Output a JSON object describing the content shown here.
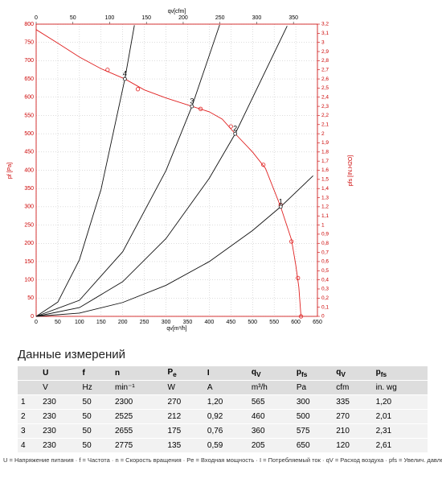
{
  "chart_data": {
    "type": "line",
    "xlabel": "qv[m³/h]",
    "x2label": "qv[cfm]",
    "ylabel": "pf [Pa]",
    "y2label": "pfs [IN.H2O]",
    "xlim": [
      0,
      650
    ],
    "xticks": [
      0,
      50,
      100,
      150,
      200,
      250,
      300,
      350,
      400,
      450,
      500,
      550,
      600,
      650
    ],
    "x2lim": [
      0,
      382.6
    ],
    "x2ticks": [
      0,
      50,
      100,
      150,
      200,
      250,
      300,
      350
    ],
    "ylim": [
      0,
      800
    ],
    "yticks": [
      0,
      50,
      100,
      150,
      200,
      250,
      300,
      350,
      400,
      450,
      500,
      550,
      600,
      650,
      700,
      750,
      800
    ],
    "y2lim": [
      0,
      3.2
    ],
    "y2ticks": [
      0,
      {
        "value": 0.1,
        "label": "0,1"
      },
      {
        "value": 0.2,
        "label": "0,2"
      },
      {
        "value": 0.3,
        "label": "0,3"
      },
      {
        "value": 0.4,
        "label": "0,4"
      },
      {
        "value": 0.5,
        "label": "0,5"
      },
      {
        "value": 0.6,
        "label": "0,6"
      },
      {
        "value": 0.7,
        "label": "0,7"
      },
      {
        "value": 0.8,
        "label": "0,8"
      },
      {
        "value": 0.9,
        "label": "0,9"
      },
      1,
      {
        "value": 1.1,
        "label": "1,1"
      },
      {
        "value": 1.2,
        "label": "1,2"
      },
      {
        "value": 1.3,
        "label": "1,3"
      },
      {
        "value": 1.4,
        "label": "1,4"
      },
      {
        "value": 1.5,
        "label": "1,5"
      },
      {
        "value": 1.6,
        "label": "1,6"
      },
      {
        "value": 1.7,
        "label": "1,7"
      },
      {
        "value": 1.8,
        "label": "1,8"
      },
      {
        "value": 1.9,
        "label": "1,9"
      },
      2,
      {
        "value": 2.1,
        "label": "2,1"
      },
      {
        "value": 2.2,
        "label": "2,2"
      },
      {
        "value": 2.3,
        "label": "2,3"
      },
      {
        "value": 2.4,
        "label": "2,4"
      },
      {
        "value": 2.5,
        "label": "2,5"
      },
      {
        "value": 2.6,
        "label": "2,6"
      },
      {
        "value": 2.7,
        "label": "2,7"
      },
      {
        "value": 2.8,
        "label": "2,8"
      },
      {
        "value": 2.9,
        "label": "2,9"
      },
      3,
      {
        "value": 3.1,
        "label": "3,1"
      },
      {
        "value": 3.2,
        "label": "3,2"
      }
    ],
    "grid": true,
    "series": [
      {
        "type": "line",
        "color": "#e02020",
        "x": [
          0,
          50,
          100,
          150,
          205,
          250,
          300,
          360,
          400,
          430,
          460,
          500,
          530,
          565,
          590,
          600,
          607,
          612
        ],
        "values": [
          785,
          748,
          710,
          678,
          650,
          620,
          598,
          575,
          560,
          540,
          500,
          450,
          405,
          300,
          210,
          140,
          80,
          0
        ]
      },
      {
        "type": "scatter",
        "color": "#e02020",
        "x": [
          165,
          235,
          380,
          450,
          525,
          565,
          590,
          605,
          612
        ],
        "values": [
          675,
          622,
          568,
          520,
          415,
          305,
          205,
          105,
          0
        ]
      },
      {
        "type": "line",
        "color": "#111111",
        "x": [
          0,
          50,
          100,
          150,
          205,
          227
        ],
        "values": [
          0,
          39,
          155,
          348,
          650,
          797
        ]
      },
      {
        "type": "line",
        "color": "#111111",
        "x": [
          0,
          100,
          200,
          300,
          360,
          424
        ],
        "values": [
          0,
          44,
          177,
          399,
          575,
          798
        ]
      },
      {
        "type": "line",
        "color": "#111111",
        "x": [
          0,
          100,
          200,
          300,
          400,
          460,
          580
        ],
        "values": [
          0,
          24,
          95,
          213,
          378,
          500,
          795
        ]
      },
      {
        "type": "line",
        "color": "#111111",
        "x": [
          0,
          100,
          200,
          300,
          400,
          500,
          565,
          640
        ],
        "values": [
          0,
          9,
          38,
          85,
          150,
          235,
          300,
          385
        ]
      }
    ],
    "annotations": [
      {
        "text": "1",
        "x": 565,
        "y": 300
      },
      {
        "text": "2",
        "x": 460,
        "y": 500
      },
      {
        "text": "3",
        "x": 360,
        "y": 575
      },
      {
        "text": "4",
        "x": 205,
        "y": 650
      }
    ]
  },
  "table": {
    "title": "Данные измерений",
    "header": [
      "",
      {
        "text": "U"
      },
      {
        "text": "f"
      },
      {
        "text": "n"
      },
      {
        "text": "P",
        "sub": "e"
      },
      {
        "text": "I"
      },
      {
        "text": "q",
        "sub": "V"
      },
      {
        "text": "p",
        "sub": "fs"
      },
      {
        "text": "q",
        "sub": "V"
      },
      {
        "text": "p",
        "sub": "fs"
      }
    ],
    "units": [
      "",
      "V",
      "Hz",
      "min⁻¹",
      "W",
      "A",
      "m³/h",
      "Pa",
      "cfm",
      "in. wg"
    ],
    "rows": [
      [
        "1",
        "230",
        "50",
        "2300",
        "270",
        "1,20",
        "565",
        "300",
        "335",
        "1,20"
      ],
      [
        "2",
        "230",
        "50",
        "2525",
        "212",
        "0,92",
        "460",
        "500",
        "270",
        "2,01"
      ],
      [
        "3",
        "230",
        "50",
        "2655",
        "175",
        "0,76",
        "360",
        "575",
        "210",
        "2,31"
      ],
      [
        "4",
        "230",
        "50",
        "2775",
        "135",
        "0,59",
        "205",
        "650",
        "120",
        "2,61"
      ]
    ]
  },
  "footnote": "U = Напряжение питания · f = Частота · n = Скорость вращения · Pe = Входная мощность · I = Потребляемый ток · qV = Расход воздуха · pfs = Увелич. давления"
}
